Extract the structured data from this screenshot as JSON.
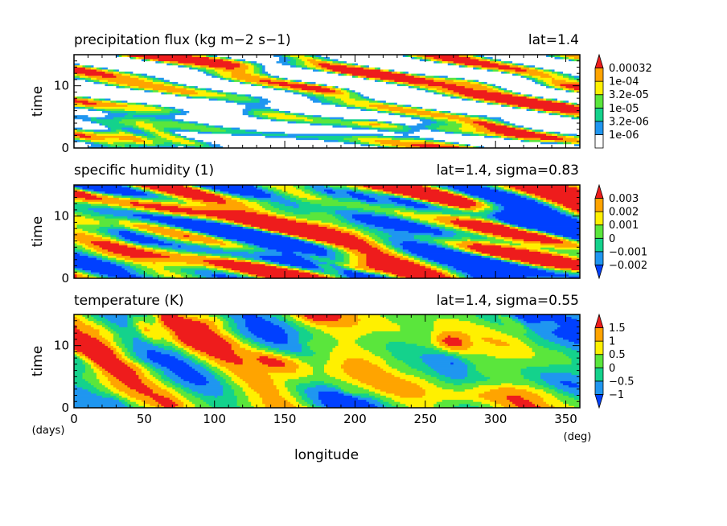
{
  "colors": {
    "levels": [
      "#ffffff",
      "#1f96f0",
      "#14d28c",
      "#5ae63c",
      "#fff000",
      "#ffa400",
      "#ee1c1c"
    ],
    "diverging": [
      "#0040ff",
      "#1f96f0",
      "#14d28c",
      "#5ae63c",
      "#fff000",
      "#ffa400",
      "#ee1c1c"
    ],
    "frame": "#000000"
  },
  "chart_data": [
    {
      "type": "heatmap",
      "title": "precipitation flux (kg m−2 s−1)",
      "location": "lat=1.4",
      "ylabel": "time",
      "xlim": [
        0,
        360
      ],
      "ylim": [
        0,
        15
      ],
      "yticks": [
        "0",
        "10"
      ],
      "grid": false,
      "colorbar": {
        "placement": "right",
        "levels": [
          "1e-06",
          "3.2e-06",
          "1e-05",
          "3.2e-05",
          "1e-04",
          "0.00032"
        ],
        "colors": [
          "#ffffff",
          "#1f96f0",
          "#14d28c",
          "#5ae63c",
          "#fff000",
          "#ffa400",
          "#ee1c1c"
        ],
        "extend": "max"
      }
    },
    {
      "type": "heatmap",
      "title": "specific humidity (1)",
      "location": "lat=1.4, sigma=0.83",
      "ylabel": "time",
      "xlim": [
        0,
        360
      ],
      "ylim": [
        0,
        15
      ],
      "yticks": [
        "0",
        "10"
      ],
      "grid": false,
      "colorbar": {
        "placement": "right",
        "levels": [
          "−0.002",
          "−0.001",
          "0",
          "0.001",
          "0.002",
          "0.003"
        ],
        "colors": [
          "#0040ff",
          "#1f96f0",
          "#14d28c",
          "#5ae63c",
          "#fff000",
          "#ffa400",
          "#ee1c1c"
        ],
        "extend": "both"
      }
    },
    {
      "type": "heatmap",
      "title": "temperature (K)",
      "location": "lat=1.4, sigma=0.55",
      "ylabel": "time",
      "yunit": "(days)",
      "xlabel": "longitude",
      "xunit": "(deg)",
      "xlim": [
        0,
        360
      ],
      "ylim": [
        0,
        15
      ],
      "xticks": [
        "0",
        "50",
        "100",
        "150",
        "200",
        "250",
        "300",
        "350"
      ],
      "yticks": [
        "0",
        "10"
      ],
      "grid": false,
      "colorbar": {
        "placement": "right",
        "levels": [
          "−1",
          "−0.5",
          "0",
          "0.5",
          "1",
          "1.5"
        ],
        "colors": [
          "#0040ff",
          "#1f96f0",
          "#14d28c",
          "#5ae63c",
          "#fff000",
          "#ffa400",
          "#ee1c1c"
        ],
        "extend": "both"
      }
    }
  ]
}
